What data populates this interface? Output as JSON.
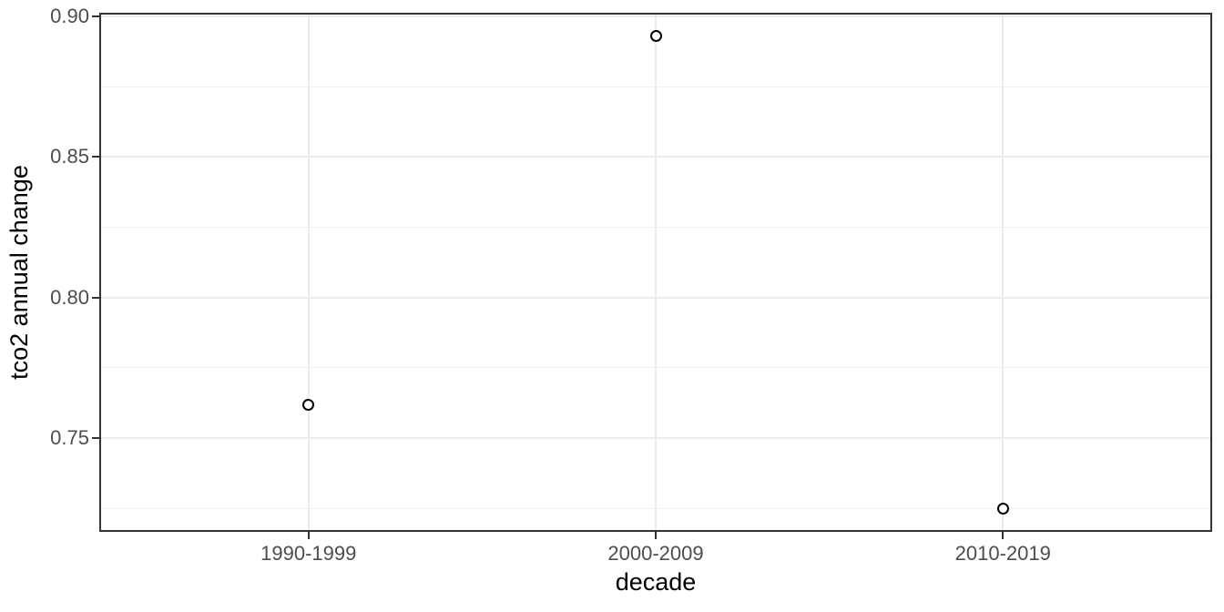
{
  "chart_data": {
    "type": "scatter",
    "title": "",
    "xlabel": "decade",
    "ylabel": "tco2 annual change",
    "categories": [
      "1990-1999",
      "2000-2009",
      "2010-2019"
    ],
    "values": [
      0.762,
      0.893,
      0.725
    ],
    "ylim": [
      0.717,
      0.901
    ],
    "y_ticks": [
      0.75,
      0.8,
      0.85,
      0.9
    ],
    "y_tick_labels": [
      "0.75",
      "0.80",
      "0.85",
      "0.90"
    ],
    "y_minor_gridlines": [
      0.725,
      0.775,
      0.825,
      0.875
    ],
    "x_gridlines": "at-categories",
    "grid": "on",
    "legend": "none",
    "point_style": "open-circle",
    "colors": {
      "background": "#ffffff",
      "panel_background": "#ffffff",
      "grid_major": "#ebebeb",
      "grid_minor": "#f1f1f1",
      "panel_border": "#333333",
      "tick_mark": "#333333",
      "tick_label": "#4d4d4d",
      "axis_title": "#000000",
      "point_stroke": "#000000"
    }
  }
}
